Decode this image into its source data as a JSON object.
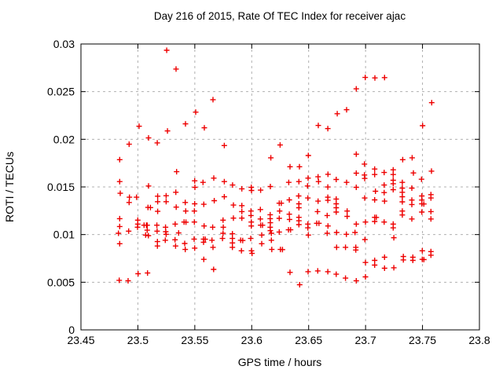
{
  "window": {
    "background": "#ffffff"
  },
  "chart_data": {
    "type": "scatter",
    "title": "Day 216 of 2015, Rate Of TEC Index for receiver ajac",
    "xlabel": "GPS time / hours",
    "ylabel": "ROTI / TECUs",
    "xlim": [
      23.45,
      23.8
    ],
    "ylim": [
      0,
      0.03
    ],
    "x_ticks": [
      23.45,
      23.5,
      23.55,
      23.6,
      23.65,
      23.7,
      23.75,
      23.8
    ],
    "x_tick_labels": [
      "23.45",
      "23.5",
      "23.55",
      "23.6",
      "23.65",
      "23.7",
      "23.75",
      "23.8"
    ],
    "y_ticks": [
      0,
      0.005,
      0.01,
      0.015,
      0.02,
      0.025,
      0.03
    ],
    "y_tick_labels": [
      "0",
      "0.005",
      "0.01",
      "0.015",
      "0.02",
      "0.025",
      "0.03"
    ],
    "grid": true,
    "legend": false,
    "marker": {
      "symbol": "plus",
      "color": "#ee0000",
      "size": 7
    },
    "colors": {
      "border": "#000000",
      "grid": "#b0b0b0",
      "background": "#ffffff"
    },
    "series_name": "ROTI",
    "points": [
      [
        23.5253,
        0.02934
      ],
      [
        23.5335,
        0.02737
      ],
      [
        23.566,
        0.02416
      ],
      [
        23.5508,
        0.02285
      ],
      [
        23.5011,
        0.02137
      ],
      [
        23.5418,
        0.02162
      ],
      [
        23.526,
        0.02088
      ],
      [
        23.5584,
        0.02121
      ],
      [
        23.5094,
        0.02014
      ],
      [
        23.6751,
        0.02268
      ],
      [
        23.6833,
        0.0231
      ],
      [
        23.6585,
        0.02145
      ],
      [
        23.6668,
        0.02112
      ],
      [
        23.6997,
        0.02649
      ],
      [
        23.7082,
        0.02644
      ],
      [
        23.7167,
        0.02647
      ],
      [
        23.6918,
        0.02529
      ],
      [
        23.7581,
        0.02384
      ],
      [
        23.7501,
        0.02143
      ],
      [
        23.4923,
        0.01948
      ],
      [
        23.517,
        0.01962
      ],
      [
        23.484,
        0.01786
      ],
      [
        23.534,
        0.0166
      ],
      [
        23.484,
        0.01556
      ],
      [
        23.4845,
        0.01433
      ],
      [
        23.4926,
        0.01392
      ],
      [
        23.4988,
        0.01392
      ],
      [
        23.4923,
        0.01337
      ],
      [
        23.5094,
        0.0151
      ],
      [
        23.5174,
        0.01403
      ],
      [
        23.5174,
        0.01345
      ],
      [
        23.5248,
        0.01408
      ],
      [
        23.5248,
        0.01345
      ],
      [
        23.5333,
        0.01444
      ],
      [
        23.5089,
        0.01285
      ],
      [
        23.511,
        0.01283
      ],
      [
        23.5174,
        0.01244
      ],
      [
        23.5337,
        0.01288
      ],
      [
        23.5416,
        0.01337
      ],
      [
        23.542,
        0.01247
      ],
      [
        23.5499,
        0.01564
      ],
      [
        23.5501,
        0.01496
      ],
      [
        23.5499,
        0.01323
      ],
      [
        23.5496,
        0.01247
      ],
      [
        23.5572,
        0.01548
      ],
      [
        23.5579,
        0.01318
      ],
      [
        23.5667,
        0.01592
      ],
      [
        23.5671,
        0.01356
      ],
      [
        23.484,
        0.01167
      ],
      [
        23.484,
        0.01085
      ],
      [
        23.5054,
        0.01099
      ],
      [
        23.5075,
        0.01099
      ],
      [
        23.4919,
        0.01036
      ],
      [
        23.4999,
        0.01151
      ],
      [
        23.4999,
        0.0111
      ],
      [
        23.4997,
        0.01077
      ],
      [
        23.5082,
        0.01099
      ],
      [
        23.5082,
        0.01046
      ],
      [
        23.5167,
        0.01099
      ],
      [
        23.5169,
        0.01036
      ],
      [
        23.5243,
        0.01077
      ],
      [
        23.5245,
        0.0103
      ],
      [
        23.5328,
        0.0111
      ],
      [
        23.5406,
        0.01132
      ],
      [
        23.5422,
        0.0113
      ],
      [
        23.5496,
        0.01132
      ],
      [
        23.5582,
        0.0109
      ],
      [
        23.5657,
        0.01077
      ],
      [
        23.5358,
        0.01017
      ],
      [
        23.5759,
        0.01934
      ],
      [
        23.6249,
        0.0194
      ],
      [
        23.6168,
        0.01806
      ],
      [
        23.6497,
        0.0183
      ],
      [
        23.6336,
        0.01712
      ],
      [
        23.6419,
        0.01712
      ],
      [
        23.5759,
        0.01556
      ],
      [
        23.5832,
        0.0152
      ],
      [
        23.5913,
        0.0148
      ],
      [
        23.5996,
        0.01496
      ],
      [
        23.5998,
        0.01463
      ],
      [
        23.6078,
        0.01466
      ],
      [
        23.6164,
        0.01504
      ],
      [
        23.6325,
        0.01548
      ],
      [
        23.6414,
        0.01556
      ],
      [
        23.649,
        0.0151
      ],
      [
        23.6495,
        0.01592
      ],
      [
        23.6583,
        0.01606
      ],
      [
        23.6587,
        0.01556
      ],
      [
        23.667,
        0.01633
      ],
      [
        23.6668,
        0.01499
      ],
      [
        23.6742,
        0.01578
      ],
      [
        23.6833,
        0.01548
      ],
      [
        23.5759,
        0.01397
      ],
      [
        23.5839,
        0.0131
      ],
      [
        23.5839,
        0.01173
      ],
      [
        23.5913,
        0.01304
      ],
      [
        23.5913,
        0.01241
      ],
      [
        23.5913,
        0.01173
      ],
      [
        23.5993,
        0.01247
      ],
      [
        23.5993,
        0.012
      ],
      [
        23.5996,
        0.01132
      ],
      [
        23.5996,
        0.0109
      ],
      [
        23.6076,
        0.01263
      ],
      [
        23.6076,
        0.01164
      ],
      [
        23.6078,
        0.01099
      ],
      [
        23.6095,
        0.01099
      ],
      [
        23.6162,
        0.01208
      ],
      [
        23.6162,
        0.01167
      ],
      [
        23.6164,
        0.01124
      ],
      [
        23.6162,
        0.01077
      ],
      [
        23.6164,
        0.01041
      ],
      [
        23.6242,
        0.01329
      ],
      [
        23.626,
        0.01329
      ],
      [
        23.6245,
        0.01247
      ],
      [
        23.6242,
        0.0117
      ],
      [
        23.633,
        0.01364
      ],
      [
        23.633,
        0.01214
      ],
      [
        23.6332,
        0.01159
      ],
      [
        23.6412,
        0.01405
      ],
      [
        23.6414,
        0.01323
      ],
      [
        23.6414,
        0.01282
      ],
      [
        23.6414,
        0.01181
      ],
      [
        23.6414,
        0.01145
      ],
      [
        23.6493,
        0.01384
      ],
      [
        23.6583,
        0.01351
      ],
      [
        23.6578,
        0.01241
      ],
      [
        23.6668,
        0.01392
      ],
      [
        23.6668,
        0.01359
      ],
      [
        23.6742,
        0.01373
      ],
      [
        23.6742,
        0.01323
      ],
      [
        23.6742,
        0.01282
      ],
      [
        23.6742,
        0.01236
      ],
      [
        23.6663,
        0.012
      ],
      [
        23.6838,
        0.01247
      ],
      [
        23.6838,
        0.01191
      ],
      [
        23.5748,
        0.01151
      ],
      [
        23.575,
        0.01077
      ],
      [
        23.6323,
        0.0105
      ],
      [
        23.6341,
        0.0105
      ],
      [
        23.6414,
        0.01104
      ],
      [
        23.6493,
        0.0111
      ],
      [
        23.6493,
        0.01071
      ],
      [
        23.6571,
        0.01118
      ],
      [
        23.659,
        0.01118
      ],
      [
        23.667,
        0.0109
      ],
      [
        23.6918,
        0.01844
      ],
      [
        23.699,
        0.0174
      ],
      [
        23.7326,
        0.01786
      ],
      [
        23.7409,
        0.01806
      ],
      [
        23.6918,
        0.01644
      ],
      [
        23.699,
        0.01625
      ],
      [
        23.708,
        0.01688
      ],
      [
        23.708,
        0.0163
      ],
      [
        23.7163,
        0.01652
      ],
      [
        23.7243,
        0.0168
      ],
      [
        23.7243,
        0.0163
      ],
      [
        23.742,
        0.01647
      ],
      [
        23.7579,
        0.01666
      ],
      [
        23.6918,
        0.01496
      ],
      [
        23.6992,
        0.01589
      ],
      [
        23.7163,
        0.0152
      ],
      [
        23.7243,
        0.0157
      ],
      [
        23.7243,
        0.01534
      ],
      [
        23.7243,
        0.01471
      ],
      [
        23.7323,
        0.01548
      ],
      [
        23.7323,
        0.01488
      ],
      [
        23.7323,
        0.01444
      ],
      [
        23.7406,
        0.01488
      ],
      [
        23.7491,
        0.01581
      ],
      [
        23.7087,
        0.01455
      ],
      [
        23.7163,
        0.01441
      ],
      [
        23.6992,
        0.01384
      ],
      [
        23.708,
        0.01364
      ],
      [
        23.7167,
        0.01351
      ],
      [
        23.7323,
        0.01397
      ],
      [
        23.7323,
        0.01343
      ],
      [
        23.7406,
        0.01362
      ],
      [
        23.7406,
        0.01315
      ],
      [
        23.7494,
        0.01405
      ],
      [
        23.7494,
        0.01362
      ],
      [
        23.7494,
        0.01323
      ],
      [
        23.7512,
        0.01321
      ],
      [
        23.7574,
        0.01419
      ],
      [
        23.7574,
        0.01384
      ],
      [
        23.7323,
        0.01247
      ],
      [
        23.7323,
        0.01206
      ],
      [
        23.7406,
        0.01164
      ],
      [
        23.7494,
        0.01236
      ],
      [
        23.7574,
        0.01241
      ],
      [
        23.7574,
        0.01164
      ],
      [
        23.6918,
        0.0111
      ],
      [
        23.6999,
        0.01132
      ],
      [
        23.708,
        0.01181
      ],
      [
        23.7094,
        0.0118
      ],
      [
        23.708,
        0.01137
      ],
      [
        23.7163,
        0.01132
      ],
      [
        23.7243,
        0.0111
      ],
      [
        23.7243,
        0.01071
      ],
      [
        23.4829,
        0.01014
      ],
      [
        23.484,
        0.00904
      ],
      [
        23.5068,
        0.00995
      ],
      [
        23.5092,
        0.00989
      ],
      [
        23.5172,
        0.00926
      ],
      [
        23.5172,
        0.0088
      ],
      [
        23.5241,
        0.0094
      ],
      [
        23.5248,
        0.01003
      ],
      [
        23.5326,
        0.00945
      ],
      [
        23.5331,
        0.0088
      ],
      [
        23.5411,
        0.00907
      ],
      [
        23.5416,
        0.00844
      ],
      [
        23.5494,
        0.00953
      ],
      [
        23.5499,
        0.00858
      ],
      [
        23.5577,
        0.00953
      ],
      [
        23.5592,
        0.00951
      ],
      [
        23.5577,
        0.0092
      ],
      [
        23.5651,
        0.0094
      ],
      [
        23.566,
        0.00866
      ],
      [
        23.5579,
        0.0074
      ],
      [
        23.5665,
        0.00635
      ],
      [
        23.5002,
        0.00589
      ],
      [
        23.5085,
        0.00597
      ],
      [
        23.4836,
        0.0052
      ],
      [
        23.4914,
        0.00515
      ],
      [
        23.5743,
        0.00959
      ],
      [
        23.5748,
        0.01014
      ],
      [
        23.583,
        0.01009
      ],
      [
        23.583,
        0.00959
      ],
      [
        23.583,
        0.00912
      ],
      [
        23.583,
        0.00866
      ],
      [
        23.5903,
        0.0094
      ],
      [
        23.5921,
        0.00938
      ],
      [
        23.591,
        0.0083
      ],
      [
        23.5991,
        0.00959
      ],
      [
        23.5998,
        0.0083
      ],
      [
        23.6003,
        0.00803
      ],
      [
        23.6088,
        0.00995
      ],
      [
        23.6088,
        0.00904
      ],
      [
        23.6173,
        0.01014
      ],
      [
        23.6173,
        0.0094
      ],
      [
        23.6176,
        0.00844
      ],
      [
        23.6252,
        0.00844
      ],
      [
        23.627,
        0.00842
      ],
      [
        23.6242,
        0.01027
      ],
      [
        23.6497,
        0.00995
      ],
      [
        23.6336,
        0.00603
      ],
      [
        23.6421,
        0.00474
      ],
      [
        23.6495,
        0.00611
      ],
      [
        23.658,
        0.00619
      ],
      [
        23.6668,
        0.00611
      ],
      [
        23.6742,
        0.00584
      ],
      [
        23.6824,
        0.00543
      ],
      [
        23.6663,
        0.01014
      ],
      [
        23.6746,
        0.01022
      ],
      [
        23.6746,
        0.00866
      ],
      [
        23.6824,
        0.00866
      ],
      [
        23.6831,
        0.01003
      ],
      [
        23.6907,
        0.01022
      ],
      [
        23.6994,
        0.00948
      ],
      [
        23.7248,
        0.00967
      ],
      [
        23.6914,
        0.00866
      ],
      [
        23.6914,
        0.00838
      ],
      [
        23.6999,
        0.00707
      ],
      [
        23.708,
        0.00729
      ],
      [
        23.708,
        0.0068
      ],
      [
        23.7167,
        0.00762
      ],
      [
        23.7167,
        0.00647
      ],
      [
        23.7248,
        0.00652
      ],
      [
        23.7332,
        0.0077
      ],
      [
        23.7332,
        0.00734
      ],
      [
        23.7415,
        0.00762
      ],
      [
        23.7415,
        0.00729
      ],
      [
        23.7498,
        0.0083
      ],
      [
        23.7498,
        0.0074
      ],
      [
        23.7512,
        0.00738
      ],
      [
        23.7574,
        0.00822
      ],
      [
        23.7574,
        0.00784
      ],
      [
        23.6918,
        0.00515
      ],
      [
        23.6999,
        0.00556
      ]
    ]
  }
}
